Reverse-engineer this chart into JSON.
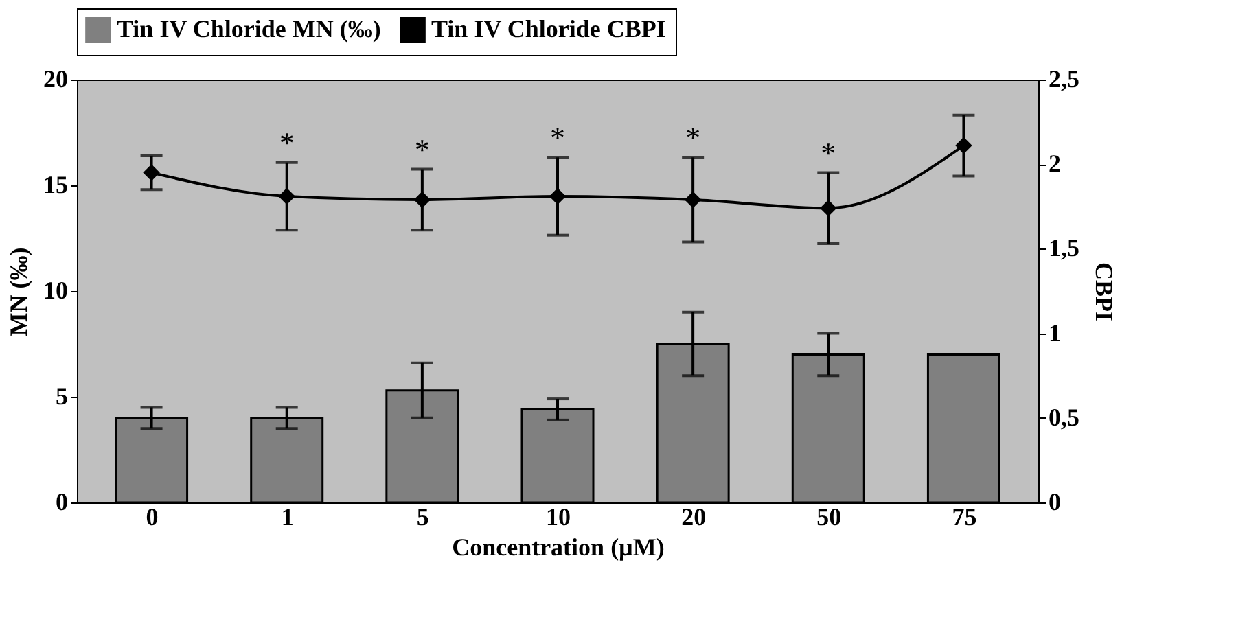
{
  "chart_data": {
    "type": "bar",
    "xlabel": "Concentration (µM)",
    "ylabel": "MN (‰)",
    "y2label": "CBPI",
    "categories": [
      "0",
      "1",
      "5",
      "10",
      "20",
      "50",
      "75"
    ],
    "series": [
      {
        "name": "Tin IV Chloride MN (‰)",
        "color": "#808080",
        "values": [
          4.0,
          4.0,
          5.3,
          4.4,
          7.5,
          7.0,
          7.0
        ],
        "errors": [
          0.5,
          0.5,
          1.3,
          0.5,
          1.5,
          1.0,
          null
        ]
      },
      {
        "name": "Tin IV Chloride CBPI",
        "type": "line",
        "axis": "y2",
        "color": "#000000",
        "marker": "diamond",
        "line_style": "solid",
        "values": [
          1.95,
          1.81,
          1.79,
          1.81,
          1.79,
          1.74,
          2.11
        ],
        "errors": [
          0.1,
          0.2,
          0.18,
          0.23,
          0.25,
          0.21,
          0.18
        ]
      }
    ],
    "ylim": [
      0,
      20
    ],
    "yticks": [
      0,
      5,
      10,
      15,
      20
    ],
    "y2lim": [
      0,
      2.5
    ],
    "y2ticks": [
      {
        "value": 0,
        "label": "0"
      },
      {
        "value": 0.5,
        "label": "0,5"
      },
      {
        "value": 1,
        "label": "1"
      },
      {
        "value": 1.5,
        "label": "1,5"
      },
      {
        "value": 2,
        "label": "2"
      },
      {
        "value": 2.5,
        "label": "2,5"
      }
    ],
    "annotations": [
      "*",
      "*",
      "*",
      "*",
      "*"
    ],
    "grid": false,
    "legend": "top"
  }
}
